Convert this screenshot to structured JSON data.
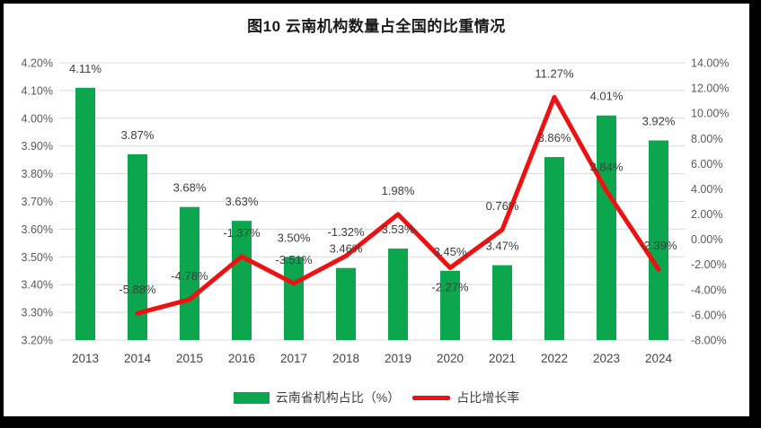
{
  "chart_data": {
    "type": "combo-bar-line",
    "title": "图10 云南机构数量占全国的比重情况",
    "categories": [
      "2013",
      "2014",
      "2015",
      "2016",
      "2017",
      "2018",
      "2019",
      "2020",
      "2021",
      "2022",
      "2023",
      "2024"
    ],
    "series": [
      {
        "name": "云南省机构占比（%）",
        "type": "bar",
        "axis": "left",
        "color": "#0CA64F",
        "values": [
          4.11,
          3.87,
          3.68,
          3.63,
          3.5,
          3.46,
          3.53,
          3.45,
          3.47,
          3.86,
          4.01,
          3.92
        ],
        "labels": [
          "4.11%",
          "3.87%",
          "3.68%",
          "3.63%",
          "3.50%",
          "3.46%",
          "3.53%",
          "3.45%",
          "3.47%",
          "3.86%",
          "4.01%",
          "3.92%"
        ]
      },
      {
        "name": "占比增长率",
        "type": "line",
        "axis": "right",
        "color": "#EE1111",
        "values": [
          null,
          -5.88,
          -4.78,
          -1.37,
          -3.51,
          -1.32,
          1.98,
          -2.27,
          0.76,
          11.27,
          3.84,
          -2.39
        ],
        "labels": [
          "",
          "-5.88%",
          "-4.78%",
          "-1.37%",
          "-3.51%",
          "-1.32%",
          "1.98%",
          "-2.27%",
          "0.76%",
          "11.27%",
          "3.84%",
          "-2.39%"
        ],
        "label_side": [
          "",
          "above",
          "above",
          "above",
          "above",
          "above",
          "above",
          "below",
          "above",
          "above",
          "above",
          "above"
        ]
      }
    ],
    "left_axis": {
      "min": 3.2,
      "max": 4.2,
      "step": 0.1,
      "ticks": [
        "4.20%",
        "4.10%",
        "4.00%",
        "3.90%",
        "3.80%",
        "3.70%",
        "3.60%",
        "3.50%",
        "3.40%",
        "3.30%",
        "3.20%"
      ]
    },
    "right_axis": {
      "min": -8,
      "max": 14,
      "step": 2,
      "ticks": [
        "14.00%",
        "12.00%",
        "10.00%",
        "8.00%",
        "6.00%",
        "4.00%",
        "2.00%",
        "0.00%",
        "-2.00%",
        "-4.00%",
        "-6.00%",
        "-8.00%"
      ]
    },
    "grid": true,
    "gridline_color": "#D9D9D9",
    "legend_position": "bottom"
  }
}
